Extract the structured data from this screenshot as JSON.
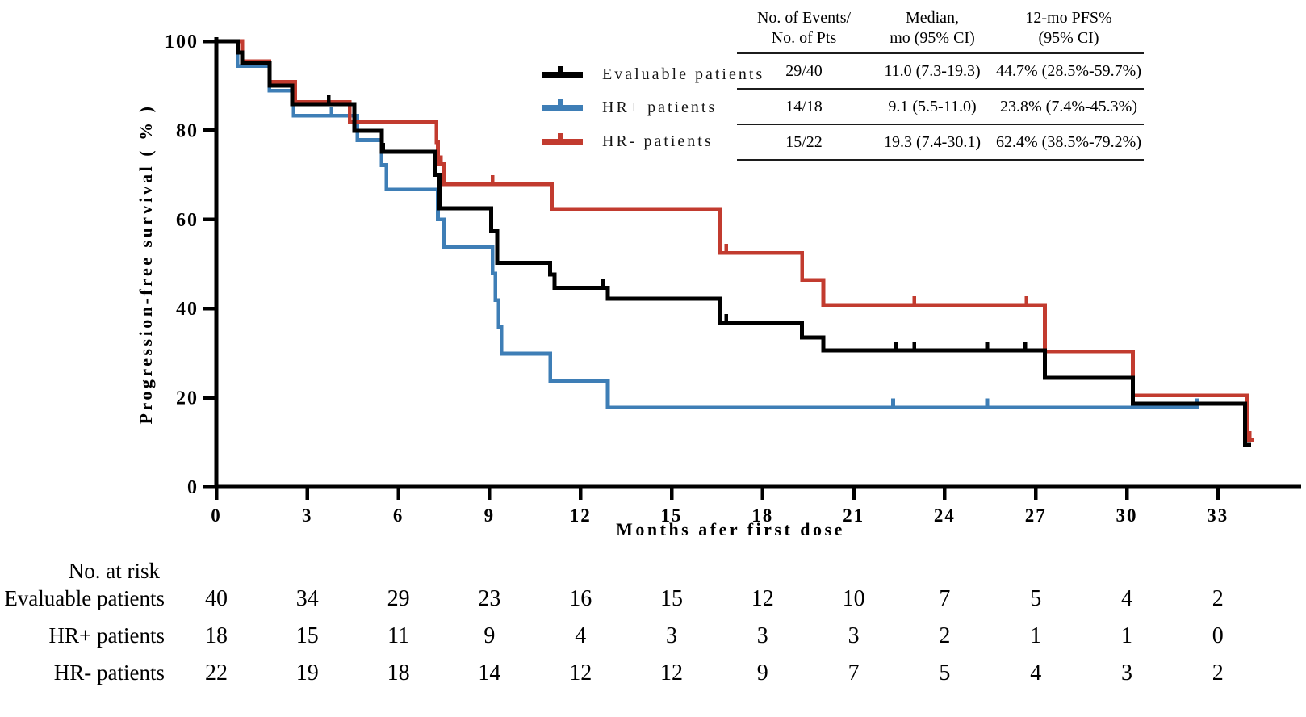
{
  "chart_data": {
    "type": "line",
    "subtype": "kaplan-meier-step",
    "title": "",
    "xlabel": "Months afer first dose",
    "ylabel": "Progression-free survival ( % )",
    "xlim": [
      0,
      34.5
    ],
    "ylim": [
      0,
      100
    ],
    "grid": false,
    "x_ticks": [
      0,
      3,
      6,
      9,
      12,
      15,
      18,
      21,
      24,
      27,
      30,
      33
    ],
    "y_ticks": [
      0,
      20,
      40,
      60,
      80,
      100
    ],
    "legend_position": "inside-top, left of summary table",
    "series": [
      {
        "name": "Evaluable patients",
        "color": "#000000",
        "n_patients": 40,
        "steps": [
          [
            0,
            100
          ],
          [
            0.7,
            97.5
          ],
          [
            0.85,
            95.0
          ],
          [
            1.75,
            90.0
          ],
          [
            2.5,
            85.9
          ],
          [
            4.55,
            79.9
          ],
          [
            5.45,
            75.2
          ],
          [
            7.2,
            70.0
          ],
          [
            7.35,
            62.5
          ],
          [
            9.05,
            57.5
          ],
          [
            9.25,
            50.3
          ],
          [
            11.0,
            47.6
          ],
          [
            11.15,
            44.7
          ],
          [
            12.9,
            42.2
          ],
          [
            16.6,
            36.8
          ],
          [
            19.3,
            33.5
          ],
          [
            20.0,
            30.6
          ],
          [
            27.3,
            24.5
          ],
          [
            30.2,
            18.7
          ],
          [
            33.9,
            9.4
          ]
        ],
        "end_month": 34.1,
        "censor_marks": [
          [
            3.7,
            85.9
          ],
          [
            5.5,
            75.2
          ],
          [
            12.75,
            44.7
          ],
          [
            16.8,
            36.8
          ],
          [
            22.4,
            30.6
          ],
          [
            23.0,
            30.6
          ],
          [
            25.4,
            30.6
          ],
          [
            26.65,
            30.6
          ]
        ]
      },
      {
        "name": "HR+ patients",
        "color": "#3e7eb6",
        "n_patients": 18,
        "steps": [
          [
            0,
            100
          ],
          [
            0.7,
            94.4
          ],
          [
            1.75,
            88.9
          ],
          [
            2.55,
            83.3
          ],
          [
            4.65,
            77.8
          ],
          [
            5.45,
            72.2
          ],
          [
            5.6,
            66.7
          ],
          [
            7.3,
            60.0
          ],
          [
            7.5,
            53.9
          ],
          [
            9.1,
            47.9
          ],
          [
            9.2,
            41.9
          ],
          [
            9.3,
            35.9
          ],
          [
            9.4,
            29.9
          ],
          [
            11.0,
            23.8
          ],
          [
            12.9,
            17.8
          ]
        ],
        "end_month": 32.4,
        "censor_marks": [
          [
            3.8,
            83.3
          ],
          [
            22.3,
            17.8
          ],
          [
            25.4,
            17.8
          ],
          [
            32.3,
            17.8
          ]
        ]
      },
      {
        "name": "HR- patients",
        "color": "#c23b2f",
        "n_patients": 22,
        "steps": [
          [
            0,
            100
          ],
          [
            0.85,
            95.5
          ],
          [
            1.75,
            90.9
          ],
          [
            2.6,
            86.4
          ],
          [
            4.4,
            81.8
          ],
          [
            7.25,
            77.3
          ],
          [
            7.3,
            72.4
          ],
          [
            7.5,
            67.9
          ],
          [
            11.05,
            62.4
          ],
          [
            16.6,
            52.5
          ],
          [
            19.3,
            46.4
          ],
          [
            20.0,
            40.8
          ],
          [
            27.3,
            30.4
          ],
          [
            30.2,
            20.5
          ],
          [
            33.95,
            10.5
          ]
        ],
        "end_month": 34.2,
        "censor_marks": [
          [
            7.4,
            72.4
          ],
          [
            9.1,
            67.9
          ],
          [
            16.8,
            52.5
          ],
          [
            23.0,
            40.8
          ],
          [
            26.7,
            40.8
          ],
          [
            34.05,
            10.5
          ]
        ]
      }
    ]
  },
  "axes": {
    "y_label": "Progression-free survival ( % )",
    "x_label": "Months afer first dose"
  },
  "legend": [
    {
      "label": "Evaluable patients",
      "color": "#000000"
    },
    {
      "label": "HR+ patients",
      "color": "#3e7eb6"
    },
    {
      "label": "HR- patients",
      "color": "#c23b2f"
    }
  ],
  "summary_table": {
    "headers": [
      {
        "line1": "No. of Events/",
        "line2": "No. of Pts"
      },
      {
        "line1": "Median,",
        "line2": "mo (95% CI)"
      },
      {
        "line1": "12-mo PFS%",
        "line2": "(95% CI)"
      }
    ],
    "rows": [
      {
        "events": "29/40",
        "median": "11.0 (7.3-19.3)",
        "pfs12": "44.7% (28.5%-59.7%)"
      },
      {
        "events": "14/18",
        "median": "9.1 (5.5-11.0)",
        "pfs12": "23.8% (7.4%-45.3%)"
      },
      {
        "events": "15/22",
        "median": "19.3 (7.4-30.1)",
        "pfs12": "62.4% (38.5%-79.2%)"
      }
    ]
  },
  "at_risk": {
    "title": "No. at risk",
    "rows": [
      {
        "label": "Evaluable patients",
        "values": [
          40,
          34,
          29,
          23,
          16,
          15,
          12,
          10,
          7,
          5,
          4,
          2
        ]
      },
      {
        "label": "HR+ patients",
        "values": [
          18,
          15,
          11,
          9,
          4,
          3,
          3,
          3,
          2,
          1,
          1,
          0
        ]
      },
      {
        "label": "HR- patients",
        "values": [
          22,
          19,
          18,
          14,
          12,
          12,
          9,
          7,
          5,
          4,
          3,
          2
        ]
      }
    ]
  }
}
